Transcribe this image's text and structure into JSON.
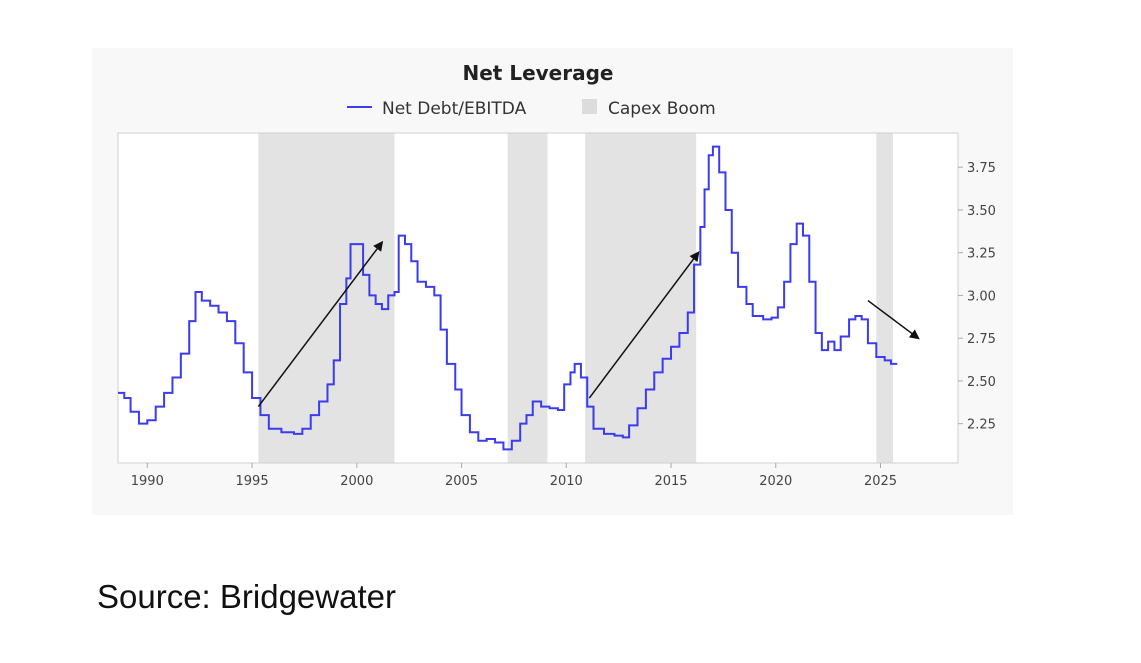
{
  "chart_data": {
    "type": "line",
    "title": "Net Leverage",
    "legend": [
      {
        "label": "Net Debt/EBITDA",
        "kind": "line",
        "color": "#3b3bf0"
      },
      {
        "label": "Capex Boom",
        "kind": "area",
        "color": "#e3e3e3"
      }
    ],
    "legend_placement": "top-center",
    "xlim": [
      1988.6,
      2028.7
    ],
    "ylim": [
      2.02,
      3.95
    ],
    "x_ticks": [
      1990,
      1995,
      2000,
      2005,
      2010,
      2015,
      2020,
      2025
    ],
    "y_ticks": [
      2.25,
      2.5,
      2.75,
      3.0,
      3.25,
      3.5,
      3.75
    ],
    "y_axis_side": "right",
    "grid": false,
    "step": true,
    "shaded_periods": [
      [
        1995.3,
        2001.8
      ],
      [
        2007.2,
        2009.1
      ],
      [
        2010.9,
        2016.2
      ],
      [
        2024.8,
        2025.6
      ]
    ],
    "series": [
      {
        "name": "Net Debt/EBITDA",
        "color": "#3b3bf0",
        "x": [
          1988.6,
          1988.9,
          1989.2,
          1989.6,
          1990.0,
          1990.4,
          1990.8,
          1991.2,
          1991.6,
          1992.0,
          1992.3,
          1992.6,
          1993.0,
          1993.4,
          1993.8,
          1994.2,
          1994.6,
          1995.0,
          1995.4,
          1995.8,
          1996.4,
          1997.0,
          1997.4,
          1997.8,
          1998.2,
          1998.6,
          1998.9,
          1999.2,
          1999.5,
          1999.7,
          2000.1,
          2000.3,
          2000.6,
          2000.9,
          2001.2,
          2001.5,
          2001.8,
          2002.0,
          2002.3,
          2002.6,
          2002.9,
          2003.3,
          2003.7,
          2004.0,
          2004.3,
          2004.7,
          2005.0,
          2005.4,
          2005.8,
          2006.2,
          2006.6,
          2007.0,
          2007.4,
          2007.8,
          2008.1,
          2008.4,
          2008.8,
          2009.2,
          2009.6,
          2009.9,
          2010.2,
          2010.4,
          2010.7,
          2011.0,
          2011.3,
          2011.8,
          2012.3,
          2012.7,
          2013.0,
          2013.4,
          2013.8,
          2014.2,
          2014.6,
          2015.0,
          2015.4,
          2015.8,
          2016.1,
          2016.4,
          2016.6,
          2016.8,
          2017.0,
          2017.3,
          2017.6,
          2017.9,
          2018.2,
          2018.6,
          2018.9,
          2019.4,
          2019.8,
          2020.1,
          2020.4,
          2020.7,
          2021.0,
          2021.3,
          2021.6,
          2021.9,
          2022.2,
          2022.5,
          2022.8,
          2023.1,
          2023.5,
          2023.8,
          2024.1,
          2024.4,
          2024.8,
          2025.2,
          2025.5
        ],
        "values": [
          2.43,
          2.4,
          2.32,
          2.25,
          2.27,
          2.35,
          2.43,
          2.52,
          2.66,
          2.85,
          3.02,
          2.97,
          2.94,
          2.9,
          2.85,
          2.72,
          2.55,
          2.4,
          2.3,
          2.22,
          2.2,
          2.19,
          2.22,
          2.3,
          2.38,
          2.48,
          2.62,
          2.95,
          3.1,
          3.3,
          3.3,
          3.12,
          3.0,
          2.95,
          2.92,
          3.0,
          3.02,
          3.35,
          3.3,
          3.2,
          3.08,
          3.05,
          3.0,
          2.8,
          2.6,
          2.45,
          2.3,
          2.2,
          2.15,
          2.16,
          2.14,
          2.1,
          2.15,
          2.25,
          2.3,
          2.38,
          2.35,
          2.34,
          2.33,
          2.48,
          2.55,
          2.6,
          2.52,
          2.35,
          2.22,
          2.19,
          2.18,
          2.17,
          2.24,
          2.34,
          2.45,
          2.55,
          2.63,
          2.7,
          2.78,
          2.9,
          3.18,
          3.4,
          3.62,
          3.82,
          3.87,
          3.72,
          3.5,
          3.25,
          3.05,
          2.95,
          2.88,
          2.86,
          2.87,
          2.93,
          3.08,
          3.3,
          3.42,
          3.35,
          3.08,
          2.78,
          2.68,
          2.73,
          2.68,
          2.76,
          2.86,
          2.88,
          2.86,
          2.72,
          2.64,
          2.62,
          2.6
        ]
      }
    ],
    "annotations": [
      {
        "type": "arrow",
        "from": [
          1995.3,
          2.35
        ],
        "to": [
          2001.2,
          3.31
        ]
      },
      {
        "type": "arrow",
        "from": [
          2011.1,
          2.4
        ],
        "to": [
          2016.3,
          3.25
        ]
      },
      {
        "type": "arrow",
        "from": [
          2024.4,
          2.97
        ],
        "to": [
          2026.8,
          2.75
        ]
      }
    ]
  },
  "footer": {
    "source": "Source: Bridgewater"
  }
}
